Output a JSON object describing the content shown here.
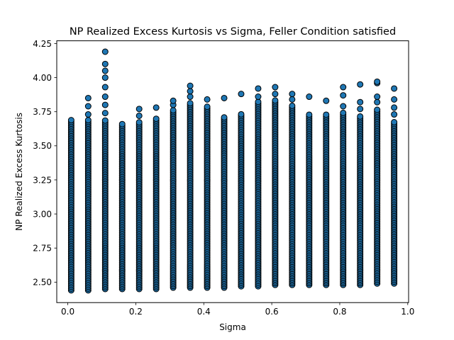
{
  "chart_data": {
    "type": "scatter",
    "title": "NP Realized Excess Kurtosis vs Sigma, Feller Condition satisfied",
    "xlabel": "Sigma",
    "ylabel": "NP Realized Excess Kurtosis",
    "xlim": [
      -0.0325,
      1.0025
    ],
    "ylim": [
      2.35,
      4.27
    ],
    "xticks": [
      0.0,
      0.2,
      0.4,
      0.6,
      0.8,
      1.0
    ],
    "xtick_labels": [
      "0.0",
      "0.2",
      "0.4",
      "0.6",
      "0.8",
      "1.0"
    ],
    "yticks": [
      2.5,
      2.75,
      3.0,
      3.25,
      3.5,
      3.75,
      4.0,
      4.25
    ],
    "ytick_labels": [
      "2.50",
      "2.75",
      "3.00",
      "3.25",
      "3.50",
      "3.75",
      "4.00",
      "4.25"
    ],
    "grid": false,
    "marker_color": "#1f77b4",
    "marker_edge": "#000000",
    "columns": [
      {
        "x": 0.01,
        "min": 2.44,
        "max": 3.69,
        "outliers": []
      },
      {
        "x": 0.06,
        "min": 2.44,
        "max": 3.69,
        "outliers": [
          3.73,
          3.79,
          3.85
        ]
      },
      {
        "x": 0.11,
        "min": 2.45,
        "max": 3.69,
        "outliers": [
          3.74,
          3.8,
          3.86,
          3.93,
          4.0,
          4.05,
          4.1,
          4.19
        ]
      },
      {
        "x": 0.16,
        "min": 2.45,
        "max": 3.66,
        "outliers": []
      },
      {
        "x": 0.21,
        "min": 2.45,
        "max": 3.68,
        "outliers": [
          3.72,
          3.77
        ]
      },
      {
        "x": 0.26,
        "min": 2.45,
        "max": 3.71,
        "outliers": [
          3.78
        ]
      },
      {
        "x": 0.31,
        "min": 2.46,
        "max": 3.76,
        "outliers": [
          3.8,
          3.83
        ]
      },
      {
        "x": 0.36,
        "min": 2.46,
        "max": 3.82,
        "outliers": [
          3.86,
          3.9,
          3.94
        ]
      },
      {
        "x": 0.41,
        "min": 2.46,
        "max": 3.79,
        "outliers": [
          3.84
        ]
      },
      {
        "x": 0.46,
        "min": 2.46,
        "max": 3.71,
        "outliers": [
          3.85
        ]
      },
      {
        "x": 0.51,
        "min": 2.47,
        "max": 3.74,
        "outliers": [
          3.88
        ]
      },
      {
        "x": 0.56,
        "min": 2.47,
        "max": 3.83,
        "outliers": [
          3.86,
          3.92
        ]
      },
      {
        "x": 0.61,
        "min": 2.48,
        "max": 3.84,
        "outliers": [
          3.88,
          3.93
        ]
      },
      {
        "x": 0.66,
        "min": 2.48,
        "max": 3.8,
        "outliers": [
          3.84,
          3.88
        ]
      },
      {
        "x": 0.71,
        "min": 2.48,
        "max": 3.73,
        "outliers": [
          3.86
        ]
      },
      {
        "x": 0.76,
        "min": 2.48,
        "max": 3.73,
        "outliers": [
          3.83
        ]
      },
      {
        "x": 0.81,
        "min": 2.48,
        "max": 3.75,
        "outliers": [
          3.79,
          3.87,
          3.93
        ]
      },
      {
        "x": 0.86,
        "min": 2.48,
        "max": 3.72,
        "outliers": [
          3.77,
          3.82,
          3.95
        ]
      },
      {
        "x": 0.91,
        "min": 2.49,
        "max": 3.77,
        "outliers": [
          3.82,
          3.86,
          3.96,
          3.97
        ]
      },
      {
        "x": 0.96,
        "min": 2.49,
        "max": 3.68,
        "outliers": [
          3.73,
          3.78,
          3.84,
          3.92
        ]
      }
    ]
  }
}
